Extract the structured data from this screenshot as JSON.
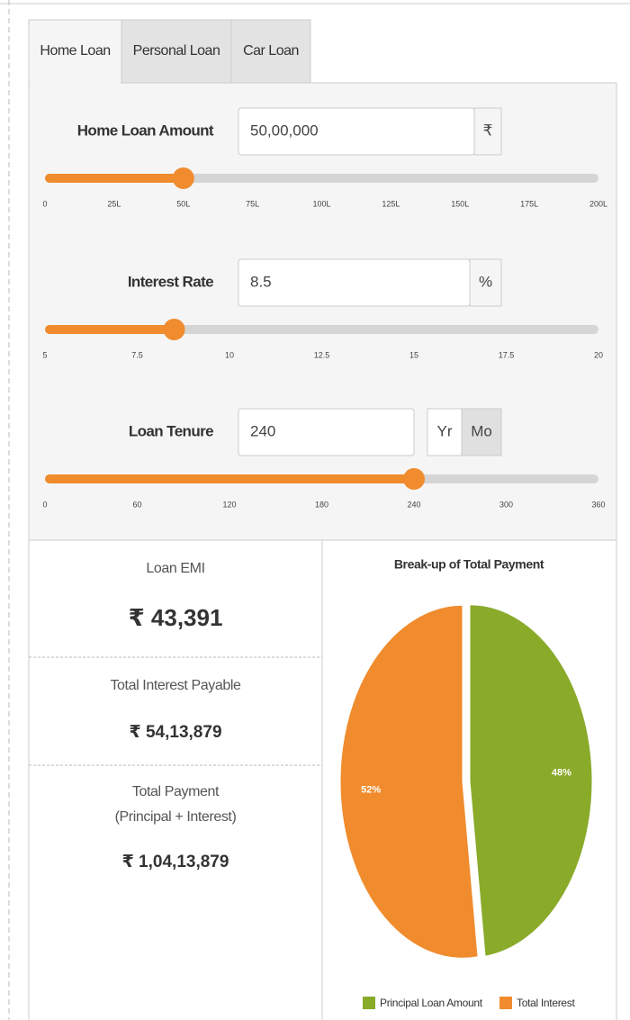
{
  "tabs": [
    "Home Loan",
    "Personal Loan",
    "Car Loan"
  ],
  "sliders": [
    {
      "label": "Home Loan Amount",
      "input": "50,00,000",
      "unit": "₹",
      "value": 50,
      "ticks": [
        0,
        {
          "value": 25,
          "label": "25L"
        },
        {
          "value": 50,
          "label": "50L"
        },
        {
          "value": 75,
          "label": "75L"
        },
        {
          "value": 100,
          "label": "100L"
        },
        {
          "value": 125,
          "label": "125L"
        },
        {
          "value": 150,
          "label": "150L"
        },
        {
          "value": 175,
          "label": "175L"
        },
        {
          "value": 200,
          "label": "200L"
        }
      ]
    },
    {
      "label": "Interest Rate",
      "input": "8.5",
      "unit": "%",
      "value": 8.5,
      "ticks": [
        5,
        7.5,
        10,
        12.5,
        15,
        17.5,
        20
      ]
    },
    {
      "label": "Loan Tenure",
      "input": "240",
      "units": [
        "Yr",
        "Mo"
      ],
      "value": 240,
      "ticks": [
        0,
        60,
        120,
        180,
        240,
        300,
        360
      ]
    }
  ],
  "results": [
    {
      "label": "Loan EMI",
      "value": "₹ 43,391"
    },
    {
      "label": "Total Interest Payable",
      "value": "₹ 54,13,879"
    },
    {
      "label": "Total Payment",
      "sublabel": "(Principal + Interest)",
      "value": "₹ 1,04,13,879"
    }
  ],
  "chart_data": {
    "type": "pie",
    "title": "Break-up of Total Payment",
    "categories": [
      "Principal Loan Amount",
      "Total Interest"
    ],
    "values": [
      48,
      52
    ],
    "value_labels": [
      "48%",
      "52%"
    ],
    "colors": [
      "#8aaa2a",
      "#f08c2e"
    ],
    "legend": "bottom"
  }
}
